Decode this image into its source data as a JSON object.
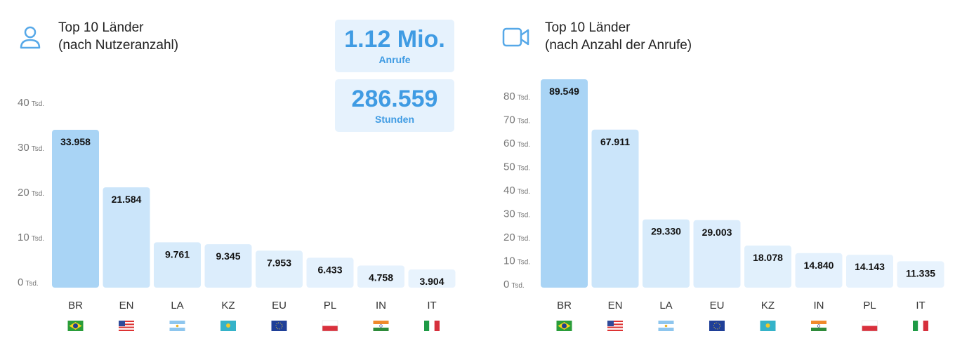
{
  "stats": [
    {
      "value": "1.12 Mio.",
      "label": "Anrufe"
    },
    {
      "value": "286.559",
      "label": "Stunden"
    }
  ],
  "chart_data": [
    {
      "type": "bar",
      "title": "Top 10 Länder",
      "subtitle": "(nach Nutzeranzahl)",
      "icon": "user-icon",
      "categories": [
        "BR",
        "EN",
        "LA",
        "KZ",
        "EU",
        "PL",
        "IN",
        "IT"
      ],
      "values": [
        33958,
        21584,
        9761,
        9345,
        7953,
        6433,
        4758,
        3904
      ],
      "value_labels": [
        "33.958",
        "21.584",
        "9.761",
        "9.345",
        "7.953",
        "6.433",
        "4.758",
        "3.904"
      ],
      "yticks": [
        0,
        10,
        20,
        30,
        40
      ],
      "ytick_labels": [
        "0",
        "10",
        "20",
        "30",
        "40"
      ],
      "ytick_unit": "Tsd.",
      "ylim": [
        0,
        40000
      ]
    },
    {
      "type": "bar",
      "title": "Top 10 Länder",
      "subtitle": "(nach Anzahl der Anrufe)",
      "icon": "video-camera-icon",
      "categories": [
        "BR",
        "EN",
        "LA",
        "EU",
        "KZ",
        "IN",
        "PL",
        "IT"
      ],
      "values": [
        89549,
        67911,
        29330,
        29003,
        18078,
        14840,
        14143,
        11335
      ],
      "value_labels": [
        "89.549",
        "67.911",
        "29.330",
        "29.003",
        "18.078",
        "14.840",
        "14.143",
        "11.335"
      ],
      "yticks": [
        0,
        10,
        20,
        30,
        40,
        50,
        60,
        70,
        80
      ],
      "ytick_labels": [
        "0",
        "10",
        "20",
        "30",
        "40",
        "50",
        "60",
        "70",
        "80"
      ],
      "ytick_unit": "Tsd.",
      "ylim": [
        0,
        80000
      ]
    }
  ]
}
